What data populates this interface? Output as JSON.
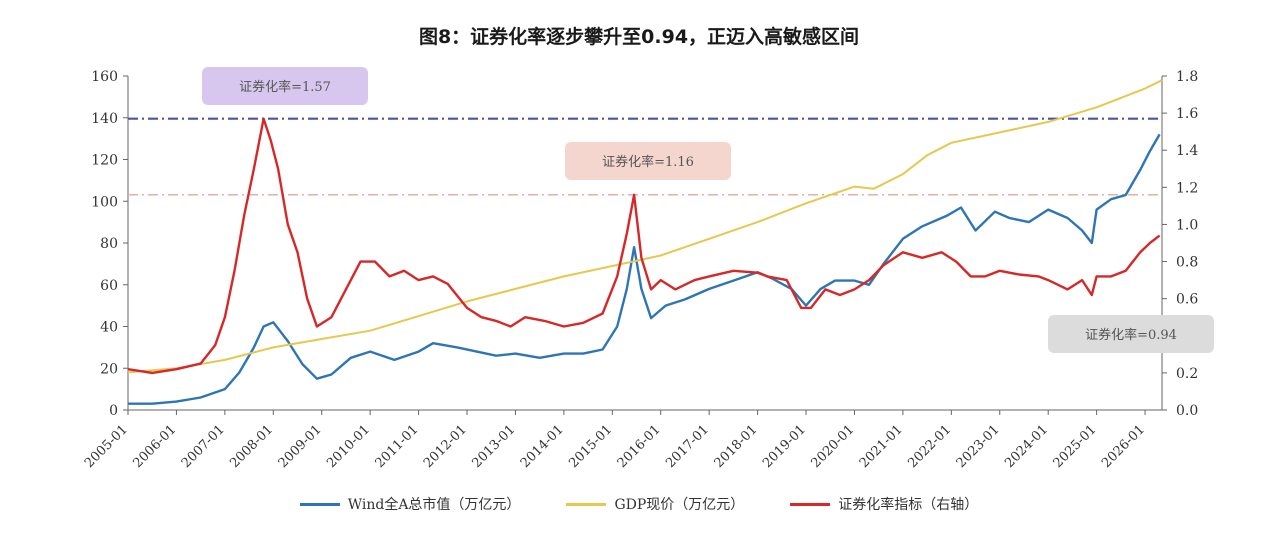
{
  "chart_data": {
    "type": "line",
    "title": "图8：证券化率逐步攀升至0.94，正迈入高敏感区间",
    "left_axis": {
      "min": 0,
      "max": 160,
      "ticks": [
        0,
        20,
        40,
        60,
        80,
        100,
        120,
        140,
        160
      ]
    },
    "right_axis": {
      "min": 0.0,
      "max": 1.8,
      "ticks": [
        "0.0",
        "0.2",
        "0.4",
        "0.6",
        "0.8",
        "1.0",
        "1.2",
        "1.4",
        "1.6",
        "1.8"
      ]
    },
    "x_ticks": [
      "2005-01",
      "2006-01",
      "2007-01",
      "2008-01",
      "2009-01",
      "2010-01",
      "2011-01",
      "2012-01",
      "2013-01",
      "2014-01",
      "2015-01",
      "2016-01",
      "2017-01",
      "2018-01",
      "2019-01",
      "2020-01",
      "2021-01",
      "2022-01",
      "2023-01",
      "2024-01",
      "2025-01",
      "2026-01"
    ],
    "x_range": [
      2005.0,
      2026.35
    ],
    "grid": false,
    "legend_position": "bottom",
    "series": [
      {
        "name": "Wind全A总市值（万亿元）",
        "axis": "left",
        "color": "#2e75b6",
        "x": [
          2005.0,
          2005.5,
          2006.0,
          2006.5,
          2007.0,
          2007.3,
          2007.6,
          2007.8,
          2008.0,
          2008.3,
          2008.6,
          2008.9,
          2009.2,
          2009.6,
          2010.0,
          2010.5,
          2011.0,
          2011.3,
          2011.8,
          2012.2,
          2012.6,
          2013.0,
          2013.5,
          2014.0,
          2014.4,
          2014.8,
          2015.1,
          2015.3,
          2015.45,
          2015.6,
          2015.8,
          2016.1,
          2016.5,
          2017.0,
          2017.5,
          2018.0,
          2018.3,
          2018.7,
          2019.0,
          2019.3,
          2019.6,
          2020.0,
          2020.3,
          2020.6,
          2021.0,
          2021.4,
          2021.9,
          2022.2,
          2022.5,
          2022.9,
          2023.2,
          2023.6,
          2024.0,
          2024.4,
          2024.7,
          2024.9,
          2025.0,
          2025.3,
          2025.6,
          2025.9,
          2026.1,
          2026.3
        ],
        "y": [
          3,
          3,
          4,
          6,
          10,
          18,
          30,
          40,
          42,
          33,
          22,
          15,
          17,
          25,
          28,
          24,
          28,
          32,
          30,
          28,
          26,
          27,
          25,
          27,
          27,
          29,
          40,
          58,
          78,
          58,
          44,
          50,
          53,
          58,
          62,
          66,
          63,
          58,
          50,
          58,
          62,
          62,
          60,
          70,
          82,
          88,
          93,
          97,
          86,
          95,
          92,
          90,
          96,
          92,
          86,
          80,
          96,
          101,
          103,
          115,
          124,
          132
        ]
      },
      {
        "name": "GDP现价（万亿元）",
        "axis": "left",
        "color": "#e6c84f",
        "x": [
          2005.0,
          2006.0,
          2007.0,
          2008.0,
          2009.0,
          2010.0,
          2011.0,
          2012.0,
          2013.0,
          2014.0,
          2015.0,
          2016.0,
          2017.0,
          2018.0,
          2019.0,
          2020.0,
          2020.4,
          2021.0,
          2021.5,
          2022.0,
          2023.0,
          2024.0,
          2025.0,
          2026.0,
          2026.35
        ],
        "y": [
          18,
          20,
          24,
          30,
          34,
          38,
          45,
          52,
          58,
          64,
          69,
          74,
          82,
          90,
          99,
          107,
          106,
          113,
          122,
          128,
          133,
          138,
          145,
          154,
          158
        ]
      },
      {
        "name": "证券化率指标（右轴）",
        "axis": "right",
        "color": "#d62828",
        "x": [
          2005.0,
          2005.5,
          2006.0,
          2006.5,
          2006.8,
          2007.0,
          2007.2,
          2007.4,
          2007.6,
          2007.8,
          2007.95,
          2008.1,
          2008.3,
          2008.5,
          2008.7,
          2008.9,
          2009.2,
          2009.5,
          2009.8,
          2010.1,
          2010.4,
          2010.7,
          2011.0,
          2011.3,
          2011.6,
          2012.0,
          2012.3,
          2012.6,
          2012.9,
          2013.2,
          2013.6,
          2014.0,
          2014.4,
          2014.8,
          2015.1,
          2015.3,
          2015.45,
          2015.6,
          2015.8,
          2016.0,
          2016.3,
          2016.7,
          2017.0,
          2017.5,
          2018.0,
          2018.2,
          2018.6,
          2018.9,
          2019.1,
          2019.4,
          2019.7,
          2020.0,
          2020.3,
          2020.6,
          2021.0,
          2021.4,
          2021.8,
          2022.1,
          2022.4,
          2022.7,
          2023.0,
          2023.4,
          2023.8,
          2024.0,
          2024.4,
          2024.7,
          2024.9,
          2025.0,
          2025.3,
          2025.6,
          2025.9,
          2026.1,
          2026.3
        ],
        "y": [
          0.22,
          0.2,
          0.22,
          0.25,
          0.35,
          0.5,
          0.75,
          1.05,
          1.3,
          1.57,
          1.45,
          1.3,
          1.0,
          0.85,
          0.6,
          0.45,
          0.5,
          0.65,
          0.8,
          0.8,
          0.72,
          0.75,
          0.7,
          0.72,
          0.68,
          0.55,
          0.5,
          0.48,
          0.45,
          0.5,
          0.48,
          0.45,
          0.47,
          0.52,
          0.72,
          0.95,
          1.16,
          0.82,
          0.65,
          0.7,
          0.65,
          0.7,
          0.72,
          0.75,
          0.74,
          0.72,
          0.7,
          0.55,
          0.55,
          0.65,
          0.62,
          0.65,
          0.7,
          0.78,
          0.85,
          0.82,
          0.85,
          0.8,
          0.72,
          0.72,
          0.75,
          0.73,
          0.72,
          0.7,
          0.65,
          0.7,
          0.62,
          0.72,
          0.72,
          0.75,
          0.85,
          0.9,
          0.94
        ]
      }
    ],
    "reference_lines": [
      {
        "value": 1.57,
        "color": "#4a52a8",
        "style": "dash-dot",
        "label": "证券化率=1.57",
        "label_bg": "#d7c7ee"
      },
      {
        "value": 1.16,
        "color": "#e2b2a6",
        "style": "dash-dot",
        "label": "证券化率=1.16",
        "label_bg": "#f4d6cf"
      },
      {
        "value": 0.94,
        "label": "证券化率=0.94",
        "label_bg": "#dcdcdc"
      }
    ]
  }
}
